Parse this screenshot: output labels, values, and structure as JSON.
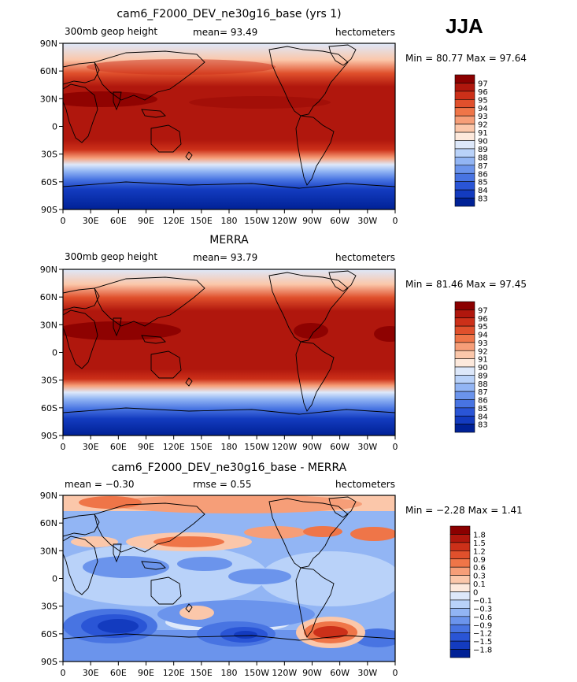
{
  "season": "JJA",
  "panels": [
    {
      "title": "cam6_F2000_DEV_ne30g16_base (yrs 1)",
      "left_label": "300mb geop height",
      "center_label": "mean=   93.49",
      "right_label": "hectometers",
      "minmax": "Min =  80.77 Max =  97.64"
    },
    {
      "title": "MERRA",
      "left_label": "300mb geop height",
      "center_label": "mean=   93.79",
      "right_label": "hectometers",
      "minmax": "Min =  81.46 Max =  97.45"
    },
    {
      "title": "cam6_F2000_DEV_ne30g16_base - MERRA",
      "left_label": "mean =   −0.30",
      "center_label": "rmse =    0.55",
      "right_label": "hectometers",
      "minmax": "Min =  −2.28 Max =   1.41"
    }
  ],
  "lat_ticks": [
    "90N",
    "60N",
    "30N",
    "0",
    "30S",
    "60S",
    "90S"
  ],
  "lon_ticks": [
    "0",
    "30E",
    "60E",
    "90E",
    "120E",
    "150E",
    "180",
    "150W",
    "120W",
    "90W",
    "60W",
    "30W",
    "0"
  ],
  "colorbars": [
    {
      "labels": [
        "97",
        "96",
        "95",
        "94",
        "93",
        "92",
        "91",
        "90",
        "89",
        "88",
        "87",
        "86",
        "85",
        "84",
        "83"
      ],
      "colors": [
        "#8b0000",
        "#b0170d",
        "#cc3019",
        "#e0502c",
        "#ef7548",
        "#f69e78",
        "#fbc7aa",
        "#fde9dc",
        "#dde8fa",
        "#b9d2f9",
        "#92b5f4",
        "#6b94ec",
        "#4874e2",
        "#2a55d6",
        "#133bbf",
        "#002196"
      ]
    },
    {
      "labels": [
        "97",
        "96",
        "95",
        "94",
        "93",
        "92",
        "91",
        "90",
        "89",
        "88",
        "87",
        "86",
        "85",
        "84",
        "83"
      ],
      "colors": [
        "#8b0000",
        "#b0170d",
        "#cc3019",
        "#e0502c",
        "#ef7548",
        "#f69e78",
        "#fbc7aa",
        "#fde9dc",
        "#dde8fa",
        "#b9d2f9",
        "#92b5f4",
        "#6b94ec",
        "#4874e2",
        "#2a55d6",
        "#133bbf",
        "#002196"
      ]
    },
    {
      "labels": [
        "1.8",
        "1.5",
        "1.2",
        "0.9",
        "0.6",
        "0.3",
        "0.1",
        "0",
        "−0.1",
        "−0.3",
        "−0.6",
        "−0.9",
        "−1.2",
        "−1.5",
        "−1.8"
      ],
      "colors": [
        "#8b0000",
        "#b0170d",
        "#cc3019",
        "#e0502c",
        "#ef7548",
        "#f69e78",
        "#fbc7aa",
        "#fde9dc",
        "#dde8fa",
        "#b9d2f9",
        "#92b5f4",
        "#6b94ec",
        "#4874e2",
        "#2a55d6",
        "#133bbf",
        "#002196"
      ]
    }
  ]
}
